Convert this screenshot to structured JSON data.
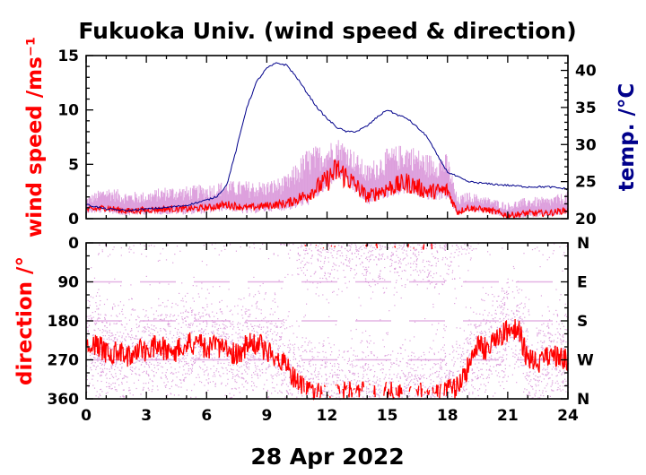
{
  "title": "Fukuoka Univ. (wind speed & direction)",
  "date_label": "28 Apr 2022",
  "colors": {
    "wind_speed": "#ff0000",
    "wind_gust": "#dda0dd",
    "temperature": "#00008b",
    "direction": "#ff0000",
    "direction_scatter": "#dda0dd",
    "axes": "#000000"
  },
  "chart_data": [
    {
      "type": "line",
      "panel": "top",
      "title": "Fukuoka Univ. (wind speed & direction)",
      "ylabel_left": "wind speed /ms⁻¹",
      "ylabel_right": "temp. /°C",
      "xlim": [
        0,
        24
      ],
      "ylim_left": [
        0,
        15
      ],
      "ylim_right": [
        20,
        42
      ],
      "x_ticks": [
        "0",
        "3",
        "6",
        "9",
        "12",
        "15",
        "18",
        "21",
        "24"
      ],
      "y_ticks_left": [
        "0",
        "5",
        "10",
        "15"
      ],
      "y_ticks_right": [
        "20",
        "25",
        "30",
        "35",
        "40"
      ],
      "series": [
        {
          "axis": "left",
          "x": [
            0,
            1,
            2,
            3,
            4,
            5,
            6,
            7,
            8,
            9,
            10,
            11,
            12,
            12.5,
            13,
            14,
            15,
            16,
            17,
            18,
            18.5,
            19,
            20,
            21,
            22,
            23,
            24
          ],
          "values": [
            0.8,
            1.0,
            0.7,
            0.8,
            0.9,
            0.9,
            1.0,
            1.3,
            1.0,
            1.2,
            1.4,
            2.2,
            3.5,
            4.5,
            3.8,
            2.0,
            2.8,
            3.3,
            2.5,
            2.6,
            0.6,
            1.0,
            0.8,
            0.3,
            0.5,
            0.5,
            0.8
          ]
        },
        {
          "axis": "left",
          "x": [
            0,
            1,
            2,
            3,
            4,
            5,
            6,
            7,
            8,
            9,
            10,
            11,
            12,
            12.5,
            13,
            14,
            15,
            16,
            17,
            18,
            18.5,
            19,
            20,
            21,
            22,
            23,
            24
          ],
          "values": [
            2.0,
            3.0,
            2.5,
            2.5,
            3.0,
            3.0,
            3.2,
            3.5,
            3.5,
            3.5,
            4.0,
            6.5,
            7.0,
            7.5,
            7.0,
            5.0,
            6.5,
            7.0,
            6.0,
            6.0,
            2.0,
            2.5,
            2.0,
            1.5,
            2.0,
            2.0,
            2.5
          ]
        },
        {
          "axis": "right",
          "x": [
            0,
            1,
            2,
            3,
            4,
            5,
            6,
            6.5,
            7,
            7.5,
            8,
            8.5,
            9,
            9.5,
            10,
            10.5,
            11,
            11.5,
            12,
            12.5,
            13,
            13.5,
            14,
            14.5,
            15,
            15.5,
            16,
            16.5,
            17,
            17.5,
            18,
            19,
            20,
            21,
            22,
            23,
            24
          ],
          "values": [
            21.9,
            21.3,
            21.1,
            21.3,
            21.5,
            21.8,
            22.5,
            23.0,
            24.5,
            29.5,
            35.0,
            38.5,
            40.3,
            41.0,
            40.7,
            39.0,
            37.0,
            35.0,
            33.5,
            32.3,
            31.7,
            31.8,
            32.5,
            33.7,
            34.7,
            34.0,
            33.5,
            32.3,
            31.0,
            28.5,
            26.3,
            25.0,
            24.7,
            24.5,
            24.3,
            24.3,
            24.0
          ]
        }
      ]
    },
    {
      "type": "scatter",
      "panel": "bottom",
      "ylabel": "direction /°",
      "xlabel": "28 Apr 2022",
      "xlim": [
        0,
        24
      ],
      "ylim": [
        0,
        360
      ],
      "y_inverted": true,
      "x_ticks": [
        "0",
        "3",
        "6",
        "9",
        "12",
        "15",
        "18",
        "21",
        "24"
      ],
      "y_ticks_left": [
        "0",
        "90",
        "180",
        "270",
        "360"
      ],
      "y_ticks_right": [
        "N",
        "E",
        "S",
        "W",
        "N"
      ],
      "series": [
        {
          "x": [
            0,
            0.5,
            1,
            1.5,
            2,
            2.5,
            3,
            3.5,
            4,
            4.5,
            5,
            5.5,
            6,
            6.5,
            7,
            7.5,
            8,
            8.5,
            9,
            9.5,
            10,
            10.5,
            11,
            11.5,
            12,
            12.5,
            13,
            13.5,
            14,
            14.5,
            15,
            15.5,
            16,
            16.5,
            17,
            17.5,
            18,
            18.5,
            19,
            19.5,
            20,
            20.5,
            21,
            21.5,
            22,
            22.5,
            23,
            23.5,
            24
          ],
          "values": [
            240,
            230,
            255,
            250,
            265,
            245,
            250,
            240,
            245,
            250,
            235,
            230,
            245,
            240,
            245,
            260,
            235,
            230,
            250,
            260,
            290,
            320,
            345,
            345,
            350,
            350,
            345,
            350,
            345,
            350,
            345,
            350,
            345,
            350,
            350,
            345,
            340,
            330,
            290,
            240,
            245,
            225,
            200,
            195,
            270,
            280,
            265,
            260,
            270
          ]
        }
      ]
    }
  ]
}
